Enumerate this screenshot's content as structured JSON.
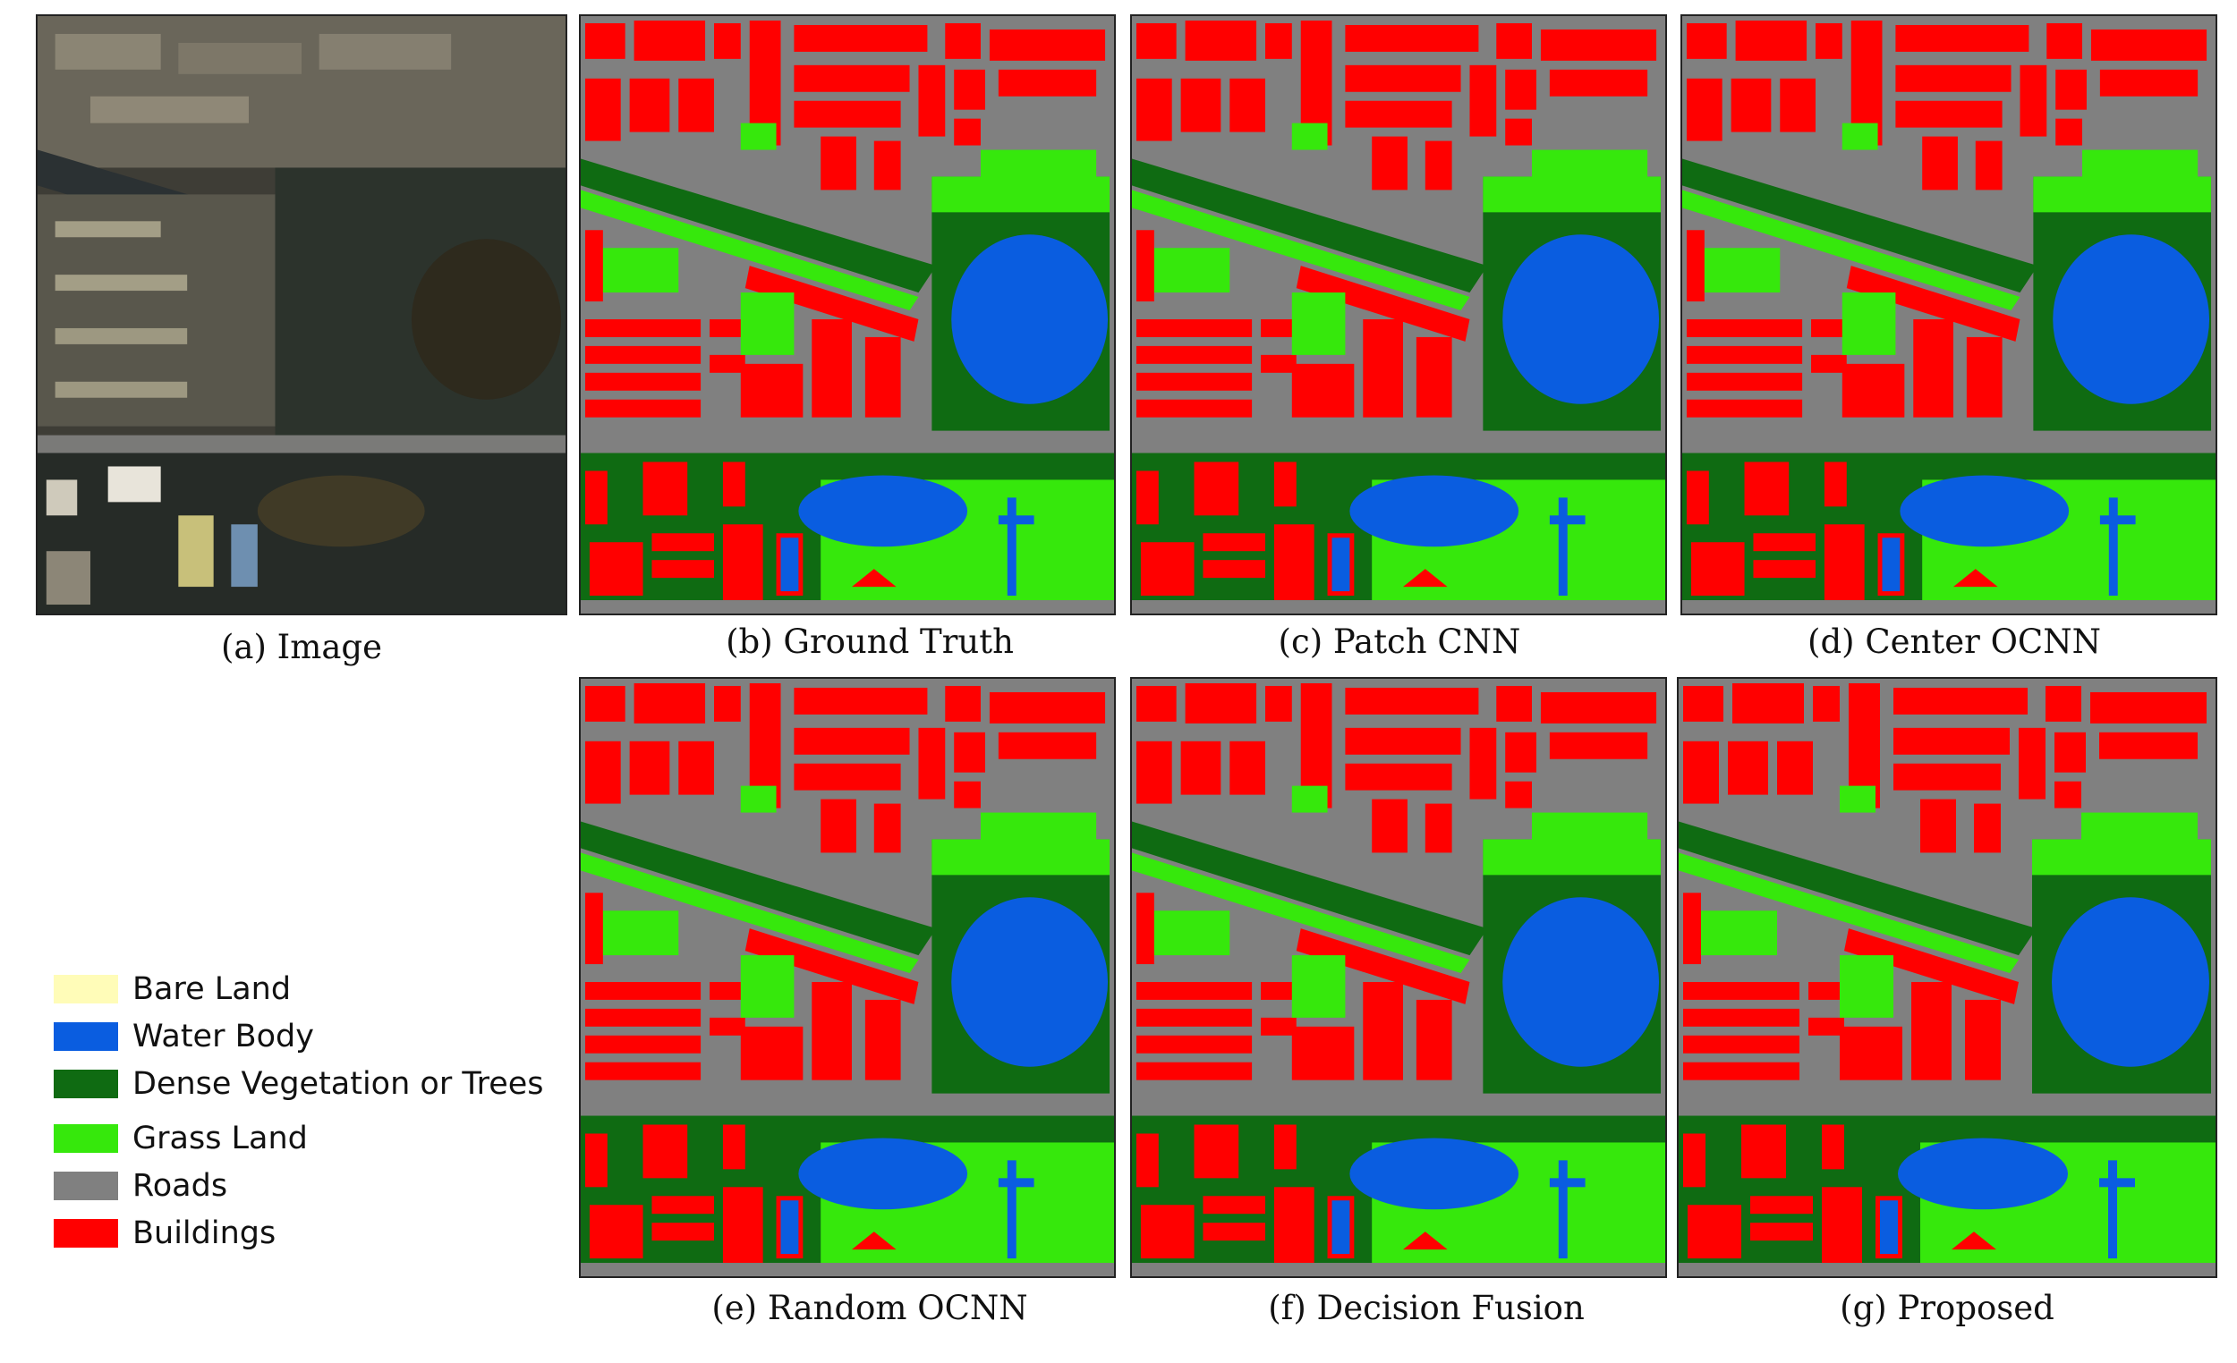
{
  "panels": {
    "a": {
      "caption": "(a) Image"
    },
    "b": {
      "caption": "(b) Ground Truth"
    },
    "c": {
      "caption": "(c) Patch CNN"
    },
    "d": {
      "caption": "(d) Center OCNN"
    },
    "e": {
      "caption": "(e) Random OCNN"
    },
    "f": {
      "caption": "(f) Decision Fusion"
    },
    "g": {
      "caption": "(g) Proposed"
    }
  },
  "legend": [
    {
      "label": "Bare Land",
      "color": "#fffcb8"
    },
    {
      "label": "Water Body",
      "color": "#0a5de0"
    },
    {
      "label": "Dense Vegetation or Trees",
      "color": "#0f6b12"
    },
    {
      "label": "Grass Land",
      "color": "#36e80c"
    },
    {
      "label": "Roads",
      "color": "#808080"
    },
    {
      "label": "Buildings",
      "color": "#ff0000"
    }
  ]
}
